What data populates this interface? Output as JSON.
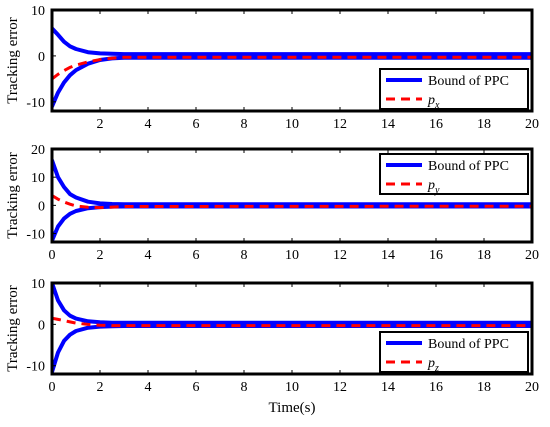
{
  "chart_data": [
    {
      "type": "line",
      "ylabel": "Tracking error",
      "xlabel": "",
      "xlim": [
        0,
        20
      ],
      "ylim": [
        -12,
        10
      ],
      "xticks": [
        "2",
        "4",
        "6",
        "8",
        "10",
        "12",
        "14",
        "16",
        "18",
        "20"
      ],
      "yticks": [
        "10",
        "0",
        "-10"
      ],
      "legend_position": "lower-right",
      "series": [
        {
          "name": "Bound of PPC",
          "color": "#0000ff",
          "style": "solid",
          "x": [
            0,
            0.25,
            0.5,
            0.75,
            1,
            1.5,
            2,
            2.5,
            3,
            20
          ],
          "upper": [
            6.0,
            4.6,
            3.1,
            2.1,
            1.5,
            0.8,
            0.55,
            0.45,
            0.4,
            0.4
          ],
          "lower": [
            -11.0,
            -8.0,
            -5.8,
            -4.2,
            -3.1,
            -1.7,
            -0.9,
            -0.55,
            -0.4,
            -0.4
          ]
        },
        {
          "name": "p",
          "subscript": "x",
          "color": "#ff0000",
          "style": "dashed",
          "x": [
            0,
            0.25,
            0.5,
            0.75,
            1,
            1.5,
            2,
            2.5,
            3,
            20
          ],
          "y": [
            -5.0,
            -4.0,
            -3.2,
            -2.5,
            -2.0,
            -1.3,
            -0.8,
            -0.5,
            -0.3,
            -0.3
          ]
        }
      ]
    },
    {
      "type": "line",
      "ylabel": "Tracking error",
      "xlabel": "",
      "xlim": [
        0,
        20
      ],
      "ylim": [
        -13,
        20
      ],
      "xticks": [
        "0",
        "2",
        "4",
        "6",
        "8",
        "10",
        "12",
        "14",
        "16",
        "18",
        "20"
      ],
      "yticks": [
        "20",
        "10",
        "0",
        "-10"
      ],
      "legend_position": "top-right",
      "series": [
        {
          "name": "Bound of PPC",
          "color": "#0000ff",
          "style": "solid",
          "x": [
            0,
            0.25,
            0.5,
            0.75,
            1,
            1.5,
            2,
            2.5,
            3,
            20
          ],
          "upper": [
            16.0,
            10.0,
            6.5,
            4.0,
            2.8,
            1.3,
            0.7,
            0.5,
            0.4,
            0.4
          ],
          "lower": [
            -12.5,
            -7.5,
            -4.7,
            -3.0,
            -2.0,
            -1.0,
            -0.6,
            -0.45,
            -0.4,
            -0.4
          ]
        },
        {
          "name": "p",
          "subscript": "y",
          "color": "#ff0000",
          "style": "dashed",
          "x": [
            0,
            0.25,
            0.5,
            0.75,
            1,
            1.5,
            2,
            2.5,
            3,
            20
          ],
          "y": [
            3.5,
            2.2,
            1.2,
            0.4,
            -0.2,
            -0.7,
            -0.8,
            -0.6,
            -0.4,
            -0.3
          ]
        }
      ]
    },
    {
      "type": "line",
      "ylabel": "Tracking error",
      "xlabel": "Time(s)",
      "xlim": [
        0,
        20
      ],
      "ylim": [
        -12,
        10
      ],
      "xticks": [
        "0",
        "2",
        "4",
        "6",
        "8",
        "10",
        "12",
        "14",
        "16",
        "18",
        "20"
      ],
      "yticks": [
        "10",
        "0",
        "-10"
      ],
      "legend_position": "lower-right",
      "series": [
        {
          "name": "Bound of PPC",
          "color": "#0000ff",
          "style": "solid",
          "x": [
            0,
            0.25,
            0.5,
            0.75,
            1,
            1.5,
            2,
            2.5,
            3,
            20
          ],
          "upper": [
            10.0,
            5.8,
            3.4,
            2.1,
            1.4,
            0.75,
            0.5,
            0.4,
            0.4,
            0.4
          ],
          "lower": [
            -11.5,
            -6.8,
            -4.0,
            -2.5,
            -1.6,
            -0.8,
            -0.55,
            -0.45,
            -0.4,
            -0.4
          ]
        },
        {
          "name": "p",
          "subscript": "z",
          "color": "#ff0000",
          "style": "dashed",
          "x": [
            0,
            0.25,
            0.5,
            0.75,
            1,
            1.5,
            2,
            2.5,
            3,
            20
          ],
          "y": [
            1.5,
            1.2,
            0.9,
            0.6,
            0.3,
            0.0,
            -0.2,
            -0.3,
            -0.3,
            -0.3
          ]
        }
      ]
    }
  ]
}
